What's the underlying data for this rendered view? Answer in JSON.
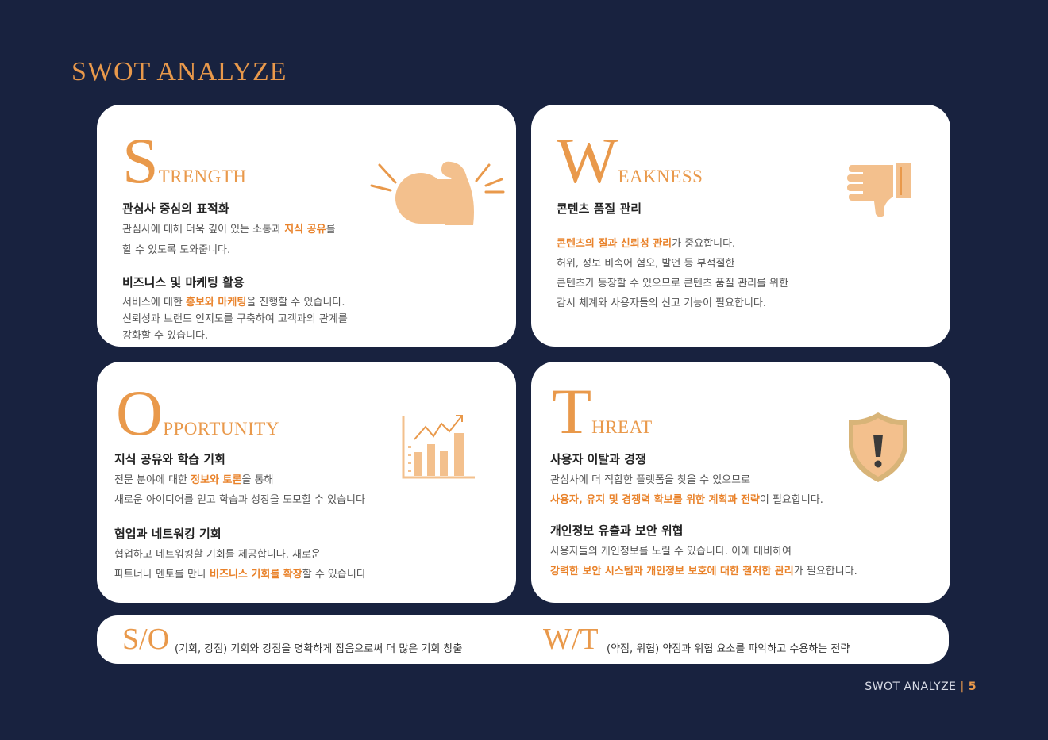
{
  "page": {
    "title": "SWOT ANALYZE"
  },
  "strength": {
    "letter": "S",
    "rest": "TRENGTH",
    "icon": "flexed-arm-icon",
    "sections": [
      {
        "title": "관심사 중심의 표적화",
        "lines": [
          [
            "관심사에 대해 더욱 깊이 있는 소통과 ",
            "지식 공유",
            "를"
          ],
          [
            "할 수 있도록 도와줍니다.",
            "",
            ""
          ]
        ]
      },
      {
        "title": "비즈니스 및 마케팅 활용",
        "lines": [
          [
            "서비스에 대한 ",
            "홍보와 마케팅",
            "을 진행할 수 있습니다."
          ],
          [
            "신뢰성과 브랜드 인지도를 구축하여 고객과의 관계를",
            "",
            ""
          ],
          [
            "강화할 수 있습니다.",
            "",
            ""
          ]
        ]
      }
    ]
  },
  "weakness": {
    "letter": "W",
    "rest": "EAKNESS",
    "icon": "thumbs-down-icon",
    "sections": [
      {
        "title": "콘텐츠 품질 관리",
        "lines": [
          [
            "",
            "콘텐츠의 질과 신뢰성 관리",
            "가 중요합니다."
          ],
          [
            "허위, 정보 비속어 혐오, 발언 등 부적절한",
            "",
            ""
          ],
          [
            "콘텐츠가 등장할 수 있으므로 콘텐츠 품질 관리를 위한",
            "",
            ""
          ],
          [
            "감시 체계와 사용자들의 신고 기능이 필요합니다.",
            "",
            ""
          ]
        ]
      }
    ]
  },
  "opportunity": {
    "letter": "O",
    "rest": "PPORTUNITY",
    "icon": "growth-chart-icon",
    "sections": [
      {
        "title": "지식 공유와 학습 기회",
        "lines": [
          [
            "전문 분야에 대한 ",
            "정보와 토론",
            "을 통해"
          ],
          [
            "새로운 아이디어를 얻고 학습과 성장을 도모할 수 있습니다",
            "",
            ""
          ]
        ]
      },
      {
        "title": "협업과 네트워킹 기회",
        "lines": [
          [
            "협업하고 네트워킹할 기회를 제공합니다. 새로운",
            "",
            ""
          ],
          [
            "파트너나 멘토를 만나 ",
            "비즈니스 기회를 확장",
            "할 수 있습니다"
          ]
        ]
      }
    ]
  },
  "threat": {
    "letter": "T",
    "rest": "HREAT",
    "icon": "warning-shield-icon",
    "sections": [
      {
        "title": "사용자 이탈과 경쟁",
        "lines": [
          [
            "관심사에 더 적합한 플랫폼을 찾을 수 있으므로",
            "",
            ""
          ],
          [
            "",
            "사용자, 유지 및 경쟁력 확보를 위한 계획과 전략",
            "이 필요합니다."
          ]
        ]
      },
      {
        "title": "개인정보 유출과 보안 위협",
        "lines": [
          [
            "사용자들의 개인정보를 노릴 수 있습니다. 이에 대비하여",
            "",
            ""
          ],
          [
            "",
            "강력한 보안 시스템과 개인정보 보호에 대한 철저한 관리",
            "가 필요합니다."
          ]
        ]
      }
    ]
  },
  "strategies": [
    {
      "key": "S/O",
      "text": "(기회, 강점) 기회와 강점을 명확하게 잡음으로써 더 많은 기회 창출"
    },
    {
      "key": "W/T",
      "text": "(약점, 위협) 약점과 위협 요소를 파악하고 수용하는 전략"
    }
  ],
  "footer": {
    "label": "SWOT ANALYZE",
    "separator": "|",
    "page_number": "5"
  },
  "colors": {
    "background": "#18223f",
    "accent": "#e9994b",
    "highlight": "#e9822a",
    "icon_fill": "#f3c08d"
  }
}
